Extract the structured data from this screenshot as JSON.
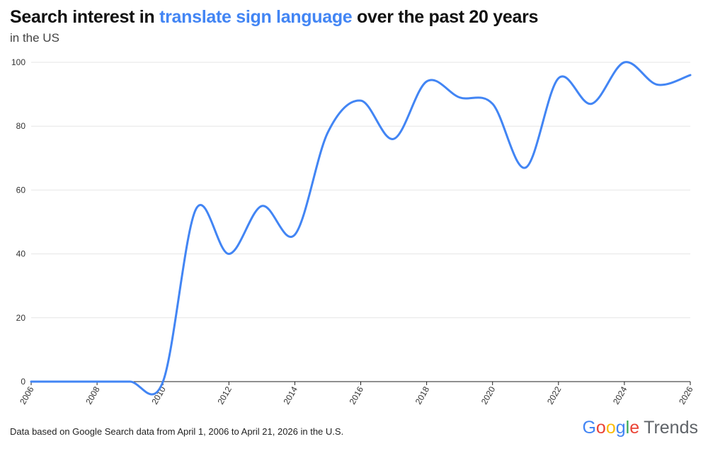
{
  "header": {
    "title_prefix": "Search interest in ",
    "title_term": "translate sign language",
    "title_suffix": " over the past 20 years",
    "subtitle": "in the US"
  },
  "footer": {
    "note": "Data based on Google Search data from April 1, 2006 to April 21, 2026 in the U.S."
  },
  "brand": {
    "google": [
      "G",
      "o",
      "o",
      "g",
      "l",
      "e"
    ],
    "trends": "Trends"
  },
  "colors": {
    "line": "#4285f4",
    "grid": "#e6e6e6",
    "axis": "#222222"
  },
  "chart_data": {
    "type": "line",
    "title": "Search interest in translate sign language over the past 20 years",
    "subtitle": "in the US",
    "x": [
      2006,
      2007,
      2008,
      2009,
      2010,
      2011,
      2012,
      2013,
      2014,
      2015,
      2016,
      2017,
      2018,
      2019,
      2020,
      2021,
      2022,
      2023,
      2024,
      2025,
      2026
    ],
    "values": [
      0,
      0,
      0,
      0,
      0,
      54,
      40,
      55,
      46,
      78,
      88,
      76,
      94,
      89,
      87,
      67,
      95,
      87,
      100,
      93,
      96
    ],
    "xlim": [
      2006,
      2026
    ],
    "ylim": [
      0,
      100
    ],
    "x_ticks": [
      "2006",
      "2008",
      "2010",
      "2012",
      "2014",
      "2016",
      "2018",
      "2020",
      "2022",
      "2024",
      "2026"
    ],
    "y_ticks": [
      "0",
      "20",
      "40",
      "60",
      "80",
      "100"
    ],
    "grid": "horizontal",
    "legend": "none"
  }
}
